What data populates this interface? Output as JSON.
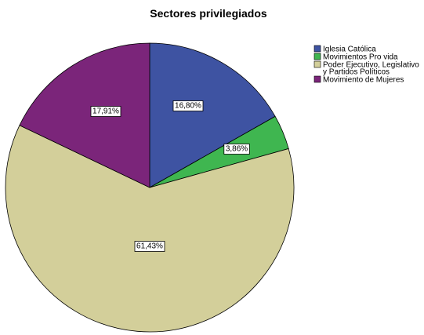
{
  "chart_data": {
    "type": "pie",
    "title": "Sectores privilegiados",
    "start_angle_deg": 0,
    "direction": "clockwise",
    "legend_position": "top-right",
    "slices": [
      {
        "label": "Iglesia Católica",
        "legend_lines": [
          "Iglesia Católica"
        ],
        "value": 16.8,
        "display": "16,80%",
        "color": "#3e53a2"
      },
      {
        "label": "Movimientos Pro vida",
        "legend_lines": [
          "Movimientos Pro vida"
        ],
        "value": 3.86,
        "display": "3,86%",
        "color": "#3fb650"
      },
      {
        "label": "Poder Ejecutivo, Legislativo y Partidos Políticos",
        "legend_lines": [
          "Poder Ejecutivo, Legislativo",
          "y Partidos Políticos"
        ],
        "value": 61.43,
        "display": "61,43%",
        "color": "#d3cf9a"
      },
      {
        "label": "Movimiento de Mujeres",
        "legend_lines": [
          "Movimiento de Mujeres"
        ],
        "value": 17.91,
        "display": "17,91%",
        "color": "#7b257a"
      }
    ]
  }
}
